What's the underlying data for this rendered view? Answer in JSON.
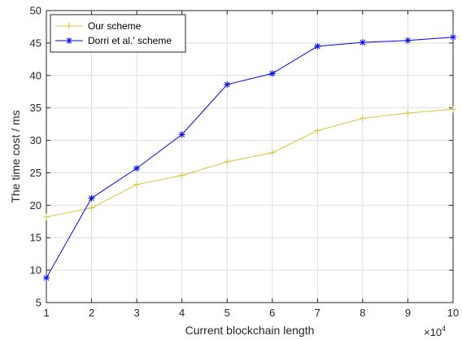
{
  "chart_data": {
    "type": "line",
    "xlabel": "Current blockchain length",
    "ylabel": "The time cost / ms",
    "x_exponent_label": "×10",
    "x_exponent_power": "4",
    "x": [
      1,
      2,
      3,
      4,
      5,
      6,
      7,
      8,
      9,
      10
    ],
    "x_tick_labels": [
      "1",
      "2",
      "3",
      "4",
      "5",
      "6",
      "7",
      "8",
      "9",
      "10"
    ],
    "y_tick_labels": [
      "5",
      "10",
      "15",
      "20",
      "25",
      "30",
      "35",
      "40",
      "45",
      "50"
    ],
    "y_ticks": [
      5,
      10,
      15,
      20,
      25,
      30,
      35,
      40,
      45,
      50
    ],
    "xlim": [
      1,
      10
    ],
    "ylim": [
      5,
      50
    ],
    "grid": true,
    "legend_position": "top-left",
    "series": [
      {
        "name": "Our scheme",
        "marker": "plus",
        "color": "#d4c53a",
        "values": [
          18.2,
          19.6,
          23.2,
          24.6,
          26.7,
          28.1,
          31.5,
          33.4,
          34.2,
          34.8
        ]
      },
      {
        "name": "Dorri et al.' scheme",
        "marker": "asterisk",
        "color": "#0000ff",
        "values": [
          8.8,
          21.1,
          25.7,
          30.9,
          38.6,
          40.3,
          44.5,
          45.1,
          45.4,
          45.9
        ]
      }
    ]
  }
}
